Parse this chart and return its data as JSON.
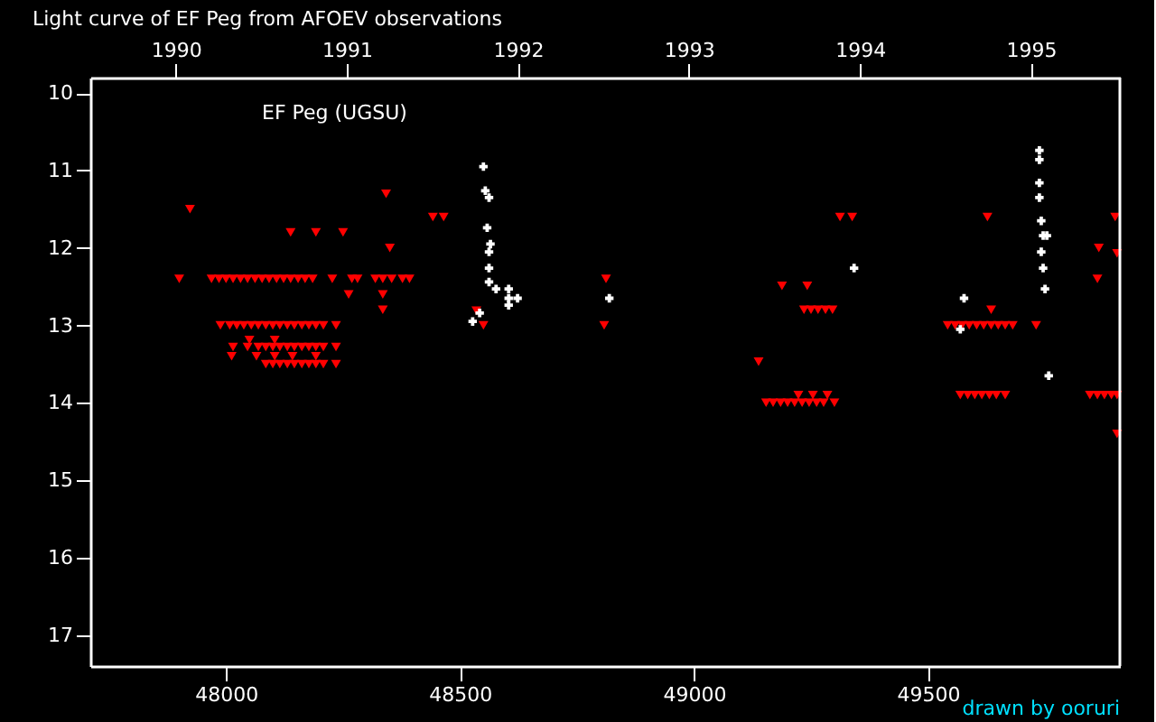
{
  "chart_data": {
    "type": "scatter",
    "title": "Light curve of EF Peg from AFOEV observations",
    "annotations": [
      "EF Peg (UGSU)",
      "drawn by ooruri"
    ],
    "xlim": [
      47710,
      49910
    ],
    "xticks": [
      48000,
      48500,
      49000,
      49500
    ],
    "x2lim": [
      1989.5,
      1995.52
    ],
    "x2ticks": [
      1990,
      1991,
      1992,
      1993,
      1994,
      1995
    ],
    "ylim": [
      17.4,
      9.8
    ],
    "yticks": [
      10,
      11,
      12,
      13,
      14,
      15,
      16,
      17
    ],
    "grid": false,
    "series": [
      {
        "color": "#ff0000",
        "marker": "triangle",
        "x": [
          47900,
          47969,
          47985,
          48000,
          48015,
          48031,
          48046,
          48062,
          48077,
          48092,
          48108,
          48123,
          48138,
          48154,
          48169,
          48185,
          48227,
          48269,
          48281,
          48319,
          48335,
          48354,
          48377,
          48392,
          48350,
          48138,
          48192,
          48250,
          48342,
          48442,
          48465,
          47923,
          48262,
          48335,
          48335,
          47988,
          48008,
          48023,
          48038,
          48054,
          48069,
          48085,
          48100,
          48115,
          48131,
          48146,
          48162,
          48177,
          48192,
          48208,
          48235,
          48050,
          48104,
          48015,
          48046,
          48069,
          48085,
          48100,
          48115,
          48131,
          48146,
          48162,
          48177,
          48192,
          48208,
          48235,
          48012,
          48065,
          48104,
          48142,
          48192,
          48085,
          48100,
          48115,
          48131,
          48146,
          48162,
          48177,
          48192,
          48208,
          48235,
          48535,
          48550,
          48812,
          48808,
          49312,
          49338,
          49188,
          49242,
          49235,
          49250,
          49265,
          49281,
          49296,
          49138,
          49223,
          49254,
          49285,
          49154,
          49169,
          49185,
          49200,
          49215,
          49231,
          49246,
          49262,
          49277,
          49300,
          49627,
          49635,
          49542,
          49558,
          49573,
          49588,
          49604,
          49619,
          49635,
          49650,
          49665,
          49681,
          49731,
          49569,
          49585,
          49600,
          49615,
          49631,
          49646,
          49665,
          49900,
          49865,
          49904,
          49862,
          49846,
          49862,
          49877,
          49892,
          49904,
          49904
        ],
        "values": [
          12.4,
          12.4,
          12.4,
          12.4,
          12.4,
          12.4,
          12.4,
          12.4,
          12.4,
          12.4,
          12.4,
          12.4,
          12.4,
          12.4,
          12.4,
          12.4,
          12.4,
          12.4,
          12.4,
          12.4,
          12.4,
          12.4,
          12.4,
          12.4,
          12.0,
          11.8,
          11.8,
          11.8,
          11.3,
          11.6,
          11.6,
          11.5,
          12.6,
          12.6,
          12.8,
          13.0,
          13.0,
          13.0,
          13.0,
          13.0,
          13.0,
          13.0,
          13.0,
          13.0,
          13.0,
          13.0,
          13.0,
          13.0,
          13.0,
          13.0,
          13.0,
          13.19,
          13.19,
          13.28,
          13.28,
          13.28,
          13.28,
          13.28,
          13.28,
          13.28,
          13.28,
          13.28,
          13.28,
          13.28,
          13.28,
          13.28,
          13.4,
          13.4,
          13.4,
          13.4,
          13.4,
          13.5,
          13.5,
          13.5,
          13.5,
          13.5,
          13.5,
          13.5,
          13.5,
          13.5,
          13.5,
          12.81,
          13.0,
          12.4,
          13.0,
          11.6,
          11.6,
          12.49,
          12.49,
          12.8,
          12.8,
          12.8,
          12.8,
          12.8,
          13.47,
          13.9,
          13.9,
          13.9,
          14.0,
          14.0,
          14.0,
          14.0,
          14.0,
          14.0,
          14.0,
          14.0,
          14.0,
          14.0,
          11.6,
          12.8,
          13.0,
          13.0,
          13.0,
          13.0,
          13.0,
          13.0,
          13.0,
          13.0,
          13.0,
          13.0,
          13.0,
          13.9,
          13.9,
          13.9,
          13.9,
          13.9,
          13.9,
          13.9,
          11.6,
          12.0,
          12.07,
          12.4,
          13.9,
          13.9,
          13.9,
          13.9,
          13.9,
          14.4
        ]
      },
      {
        "color": "#ffffff",
        "marker": "cross",
        "x": [
          48565,
          48562,
          48562,
          48562,
          48577,
          48604,
          48604,
          48623,
          48604,
          48542,
          48527,
          48550,
          48554,
          48562,
          48558,
          48819,
          49342,
          49738,
          49738,
          49738,
          49738,
          49742,
          49746,
          49754,
          49742,
          49746,
          49750,
          49577,
          49569,
          49758
        ],
        "values": [
          11.95,
          12.05,
          12.26,
          12.44,
          12.53,
          12.53,
          12.65,
          12.65,
          12.74,
          12.84,
          12.95,
          10.95,
          11.26,
          11.35,
          11.74,
          12.65,
          12.26,
          10.74,
          10.86,
          11.16,
          11.35,
          11.65,
          11.84,
          11.84,
          12.05,
          12.26,
          12.53,
          12.65,
          13.05,
          13.65
        ]
      }
    ]
  }
}
